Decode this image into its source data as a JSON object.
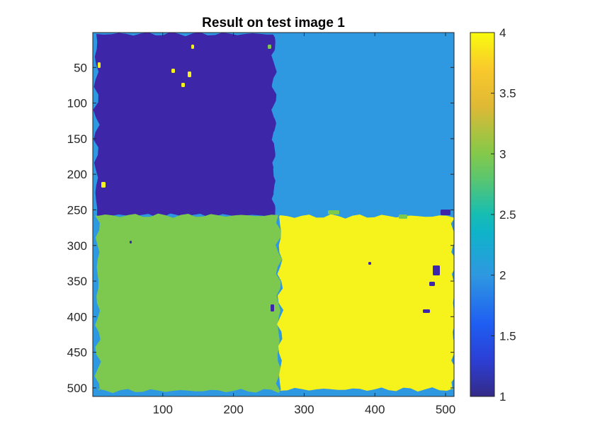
{
  "chart_data": {
    "type": "heatmap",
    "title": "Result on test image 1",
    "xlabel": "",
    "ylabel": "",
    "xlim": [
      1,
      512
    ],
    "ylim": [
      1,
      512
    ],
    "y_direction": "reverse",
    "xticks": [
      100,
      200,
      300,
      400,
      500
    ],
    "yticks": [
      50,
      100,
      150,
      200,
      250,
      300,
      350,
      400,
      450,
      500
    ],
    "grid": false,
    "colormap": "parula",
    "colorbar": {
      "limits": [
        1,
        4
      ],
      "ticks": [
        "1",
        "1.5",
        "2",
        "2.5",
        "3",
        "3.5",
        "4"
      ]
    },
    "class_colors": {
      "1": "#3e26a8",
      "2": "#2e98e0",
      "3": "#7dc84f",
      "4": "#f6f21c"
    },
    "regions": [
      {
        "label": "class-1-region",
        "value": 1,
        "x_range": [
          1,
          256
        ],
        "y_range": [
          1,
          256
        ]
      },
      {
        "label": "class-2-region",
        "value": 2,
        "x_range": [
          256,
          512
        ],
        "y_range": [
          1,
          256
        ]
      },
      {
        "label": "class-3-region",
        "value": 3,
        "x_range": [
          1,
          256
        ],
        "y_range": [
          256,
          512
        ]
      },
      {
        "label": "class-4-region",
        "value": 4,
        "x_range": [
          256,
          512
        ],
        "y_range": [
          256,
          512
        ]
      }
    ]
  }
}
